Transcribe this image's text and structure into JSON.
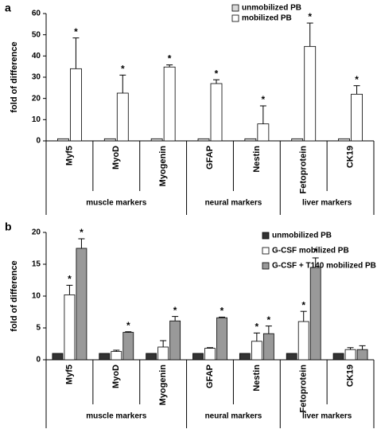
{
  "chart_data": [
    {
      "type": "bar",
      "label": "a",
      "y_label": "fold of difference",
      "categories": [
        "Myf5",
        "MyoD",
        "Myogenin",
        "GFAP",
        "Nestin",
        "Fetoprotein",
        "CK19"
      ],
      "groups": [
        {
          "label": "muscle markers",
          "size": 3
        },
        {
          "label": "neural markers",
          "size": 2
        },
        {
          "label": "liver markers",
          "size": 2
        }
      ],
      "series": [
        {
          "name": "unmobilized PB",
          "color": "#d9d9d9",
          "values": [
            1,
            1,
            1,
            1,
            1,
            1,
            1
          ],
          "errors": [
            0,
            0,
            0,
            0,
            0,
            0,
            0
          ],
          "annotations": [
            null,
            null,
            null,
            null,
            null,
            null,
            null
          ]
        },
        {
          "name": "mobilized PB",
          "color": "#ffffff",
          "values": [
            34,
            22.5,
            34.8,
            27,
            8,
            44.5,
            22
          ],
          "errors": [
            14.5,
            8.5,
            1,
            1.8,
            8.5,
            11,
            4
          ],
          "annotations": [
            "*",
            "*",
            "*",
            "*",
            "*",
            "*",
            "*"
          ]
        }
      ],
      "ylim": [
        0,
        60
      ],
      "yticks": [
        0,
        10,
        20,
        30,
        40,
        50,
        60
      ],
      "grid": false,
      "legend": "top-right"
    },
    {
      "type": "bar",
      "label": "b",
      "y_label": "fold of difference",
      "categories": [
        "Myf5",
        "MyoD",
        "Myogenin",
        "GFAP",
        "Nestin",
        "Fetoprotein",
        "CK19"
      ],
      "groups": [
        {
          "label": "muscle markers",
          "size": 3
        },
        {
          "label": "neural markers",
          "size": 2
        },
        {
          "label": "liver markers",
          "size": 2
        }
      ],
      "series": [
        {
          "name": "unmobilized PB",
          "color": "#333333",
          "values": [
            1,
            1,
            1,
            1,
            1,
            1,
            1
          ],
          "errors": [
            0,
            0,
            0,
            0,
            0,
            0,
            0
          ],
          "annotations": [
            null,
            null,
            null,
            null,
            null,
            null,
            null
          ]
        },
        {
          "name": "G-CSF mobilized PB",
          "color": "#ffffff",
          "values": [
            10.2,
            1.3,
            2,
            1.8,
            2.9,
            6,
            1.6
          ],
          "errors": [
            1.5,
            0.2,
            1,
            0.1,
            1.3,
            1.6,
            0.3
          ],
          "annotations": [
            "*",
            null,
            null,
            null,
            "*",
            "*",
            null
          ]
        },
        {
          "name": "G-CSF + T140 mobilized PB",
          "color": "#999999",
          "values": [
            17.5,
            4.3,
            6.1,
            6.6,
            4.1,
            14.5,
            1.6
          ],
          "errors": [
            1.5,
            0.1,
            0.7,
            0.1,
            1.2,
            1.5,
            0.6
          ],
          "annotations": [
            "*",
            "*",
            "*",
            "*",
            "*",
            "*",
            null
          ]
        }
      ],
      "ylim": [
        0,
        20
      ],
      "yticks": [
        0,
        5,
        10,
        15,
        20
      ],
      "grid": false,
      "legend": "top-right"
    }
  ]
}
